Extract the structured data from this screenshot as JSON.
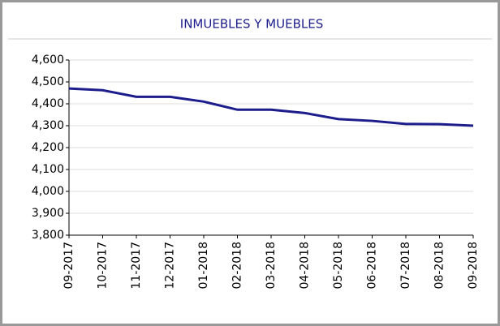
{
  "chart_data": {
    "type": "line",
    "title": "INMUEBLES Y MUEBLES",
    "categories": [
      "09-2017",
      "10-2017",
      "11-2017",
      "12-2017",
      "01-2018",
      "02-2018",
      "03-2018",
      "04-2018",
      "05-2018",
      "06-2018",
      "07-2018",
      "08-2018",
      "09-2018"
    ],
    "series": [
      {
        "color": "#1c1c8c",
        "values": [
          4470,
          4462,
          4432,
          4432,
          4410,
          4373,
          4373,
          4358,
          4330,
          4322,
          4308,
          4307,
          4300
        ]
      }
    ],
    "ylim": [
      3800,
      4600
    ],
    "yticks": [
      {
        "value": 3800,
        "label": "3,800"
      },
      {
        "value": 3900,
        "label": "3,900"
      },
      {
        "value": 4000,
        "label": "4,000"
      },
      {
        "value": 4100,
        "label": "4,100"
      },
      {
        "value": 4200,
        "label": "4,200"
      },
      {
        "value": 4300,
        "label": "4,300"
      },
      {
        "value": 4400,
        "label": "4,400"
      },
      {
        "value": 4500,
        "label": "4,500"
      },
      {
        "value": 4600,
        "label": "4,600"
      }
    ],
    "grid": true
  }
}
